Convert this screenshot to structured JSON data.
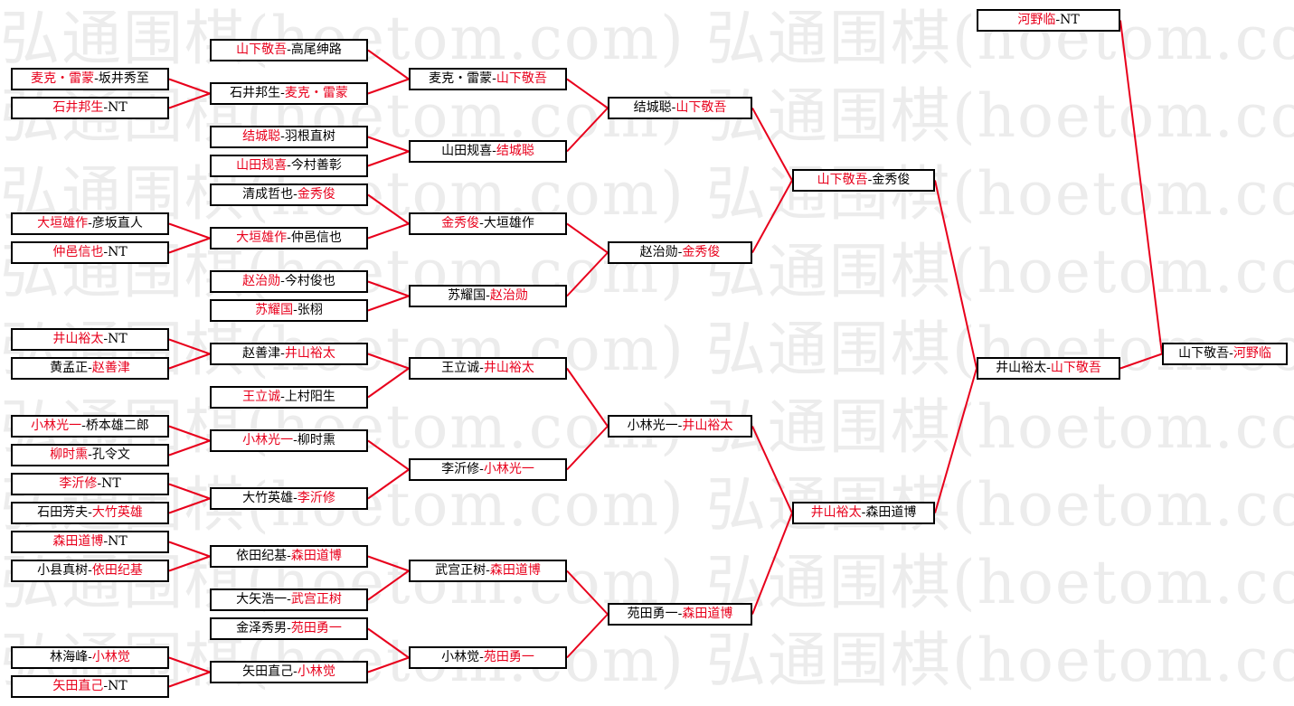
{
  "watermark": "弘通围棋(hoetom.com) 弘通围棋(hoetom.com) 弘通",
  "colors": {
    "winner": "#e8001c",
    "line": "#e8001c",
    "border": "#000000"
  },
  "matches": [
    {
      "a": "麦克・雷蒙",
      "b": "坂井秀至",
      "winner": "a"
    },
    {
      "a": "石井邦生",
      "b": "NT",
      "winner": "a"
    },
    {
      "a": "大垣雄作",
      "b": "彦坂直人",
      "winner": "a"
    },
    {
      "a": "仲邑信也",
      "b": "NT",
      "winner": "a"
    },
    {
      "a": "井山裕太",
      "b": "NT",
      "winner": "a"
    },
    {
      "a": "黄孟正",
      "b": "赵善津",
      "winner": "b"
    },
    {
      "a": "小林光一",
      "b": "桥本雄二郎",
      "winner": "a"
    },
    {
      "a": "柳时熏",
      "b": "孔令文",
      "winner": "a"
    },
    {
      "a": "李沂修",
      "b": "NT",
      "winner": "a"
    },
    {
      "a": "石田芳夫",
      "b": "大竹英雄",
      "winner": "b"
    },
    {
      "a": "森田道博",
      "b": "NT",
      "winner": "a"
    },
    {
      "a": "小县真树",
      "b": "依田纪基",
      "winner": "b"
    },
    {
      "a": "林海峰",
      "b": "小林觉",
      "winner": "b"
    },
    {
      "a": "矢田直己",
      "b": "NT",
      "winner": "a"
    },
    {
      "a": "山下敬吾",
      "b": "高尾绅路",
      "winner": "a"
    },
    {
      "a": "石井邦生",
      "b": "麦克・雷蒙",
      "winner": "b"
    },
    {
      "a": "结城聪",
      "b": "羽根直树",
      "winner": "a"
    },
    {
      "a": "山田规喜",
      "b": "今村善彰",
      "winner": "a"
    },
    {
      "a": "清成哲也",
      "b": "金秀俊",
      "winner": "b"
    },
    {
      "a": "大垣雄作",
      "b": "仲邑信也",
      "winner": "a"
    },
    {
      "a": "赵治勋",
      "b": "今村俊也",
      "winner": "a"
    },
    {
      "a": "苏耀国",
      "b": "张栩",
      "winner": "a"
    },
    {
      "a": "赵善津",
      "b": "井山裕太",
      "winner": "b"
    },
    {
      "a": "王立诚",
      "b": "上村阳生",
      "winner": "a"
    },
    {
      "a": "小林光一",
      "b": "柳时熏",
      "winner": "a"
    },
    {
      "a": "大竹英雄",
      "b": "李沂修",
      "winner": "b"
    },
    {
      "a": "依田纪基",
      "b": "森田道博",
      "winner": "b"
    },
    {
      "a": "大矢浩一",
      "b": "武宫正树",
      "winner": "b"
    },
    {
      "a": "金泽秀男",
      "b": "苑田勇一",
      "winner": "b"
    },
    {
      "a": "矢田直己",
      "b": "小林觉",
      "winner": "b"
    },
    {
      "a": "麦克・雷蒙",
      "b": "山下敬吾",
      "winner": "b"
    },
    {
      "a": "山田规喜",
      "b": "结城聪",
      "winner": "b"
    },
    {
      "a": "金秀俊",
      "b": "大垣雄作",
      "winner": "a"
    },
    {
      "a": "苏耀国",
      "b": "赵治勋",
      "winner": "b"
    },
    {
      "a": "王立诚",
      "b": "井山裕太",
      "winner": "b"
    },
    {
      "a": "李沂修",
      "b": "小林光一",
      "winner": "b"
    },
    {
      "a": "武宫正树",
      "b": "森田道博",
      "winner": "b"
    },
    {
      "a": "小林觉",
      "b": "苑田勇一",
      "winner": "b"
    },
    {
      "a": "结城聪",
      "b": "山下敬吾",
      "winner": "b"
    },
    {
      "a": "赵治勋",
      "b": "金秀俊",
      "winner": "b"
    },
    {
      "a": "小林光一",
      "b": "井山裕太",
      "winner": "b"
    },
    {
      "a": "苑田勇一",
      "b": "森田道博",
      "winner": "b"
    },
    {
      "a": "山下敬吾",
      "b": "金秀俊",
      "winner": "a"
    },
    {
      "a": "井山裕太",
      "b": "森田道博",
      "winner": "a"
    },
    {
      "a": "井山裕太",
      "b": "山下敬吾",
      "winner": "b"
    },
    {
      "a": "河野临",
      "b": "NT",
      "winner": "a"
    },
    {
      "a": "山下敬吾",
      "b": "河野临",
      "winner": "b"
    }
  ]
}
